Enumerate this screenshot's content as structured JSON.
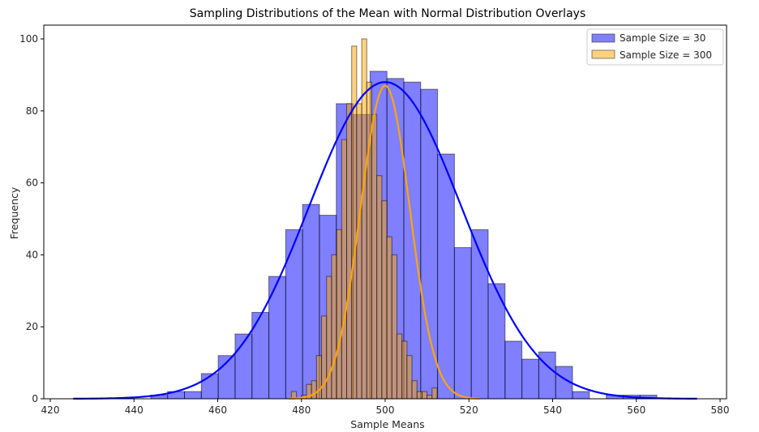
{
  "chart_data": {
    "type": "bar",
    "title": "Sampling Distributions of the Mean with Normal Distribution Overlays",
    "xlabel": "Sample Means",
    "ylabel": "Frequency",
    "xlim": [
      420,
      580
    ],
    "ylim": [
      0,
      104
    ],
    "xticks": [
      420,
      440,
      460,
      480,
      500,
      520,
      540,
      560,
      580
    ],
    "yticks": [
      0,
      20,
      40,
      60,
      80,
      100
    ],
    "legend_position": "top-right",
    "series": [
      {
        "name": "Sample Size = 30",
        "kind": "histogram",
        "color": "#0000ff",
        "alpha": 0.5,
        "bin_start": 444.0,
        "bin_width": 4.03,
        "counts": [
          1,
          2,
          2,
          7,
          12,
          18,
          24,
          34,
          47,
          54,
          51,
          82,
          79,
          91,
          89,
          88,
          86,
          68,
          42,
          47,
          32,
          16,
          11,
          13,
          9,
          2,
          0,
          1,
          1,
          1
        ]
      },
      {
        "name": "Sample Size = 300",
        "kind": "histogram",
        "color": "#ffa500",
        "alpha": 0.5,
        "bin_start": 477.6,
        "bin_width": 1.2,
        "counts": [
          2,
          0,
          1,
          4,
          5,
          12,
          23,
          34,
          40,
          47,
          72,
          82,
          98,
          82,
          100,
          88,
          79,
          62,
          55,
          45,
          40,
          18,
          16,
          12,
          5,
          2,
          2,
          1,
          3
        ]
      }
    ],
    "curves": [
      {
        "name": "normal-fit-30",
        "color": "#0000ff",
        "mean": 500,
        "peak": 88,
        "sd": 18.2,
        "x_range": [
          425.5,
          574.5
        ]
      },
      {
        "name": "normal-fit-300",
        "color": "#ffa500",
        "mean": 500,
        "peak": 87,
        "sd": 5.9,
        "x_range": [
          477,
          522.5
        ]
      }
    ]
  }
}
